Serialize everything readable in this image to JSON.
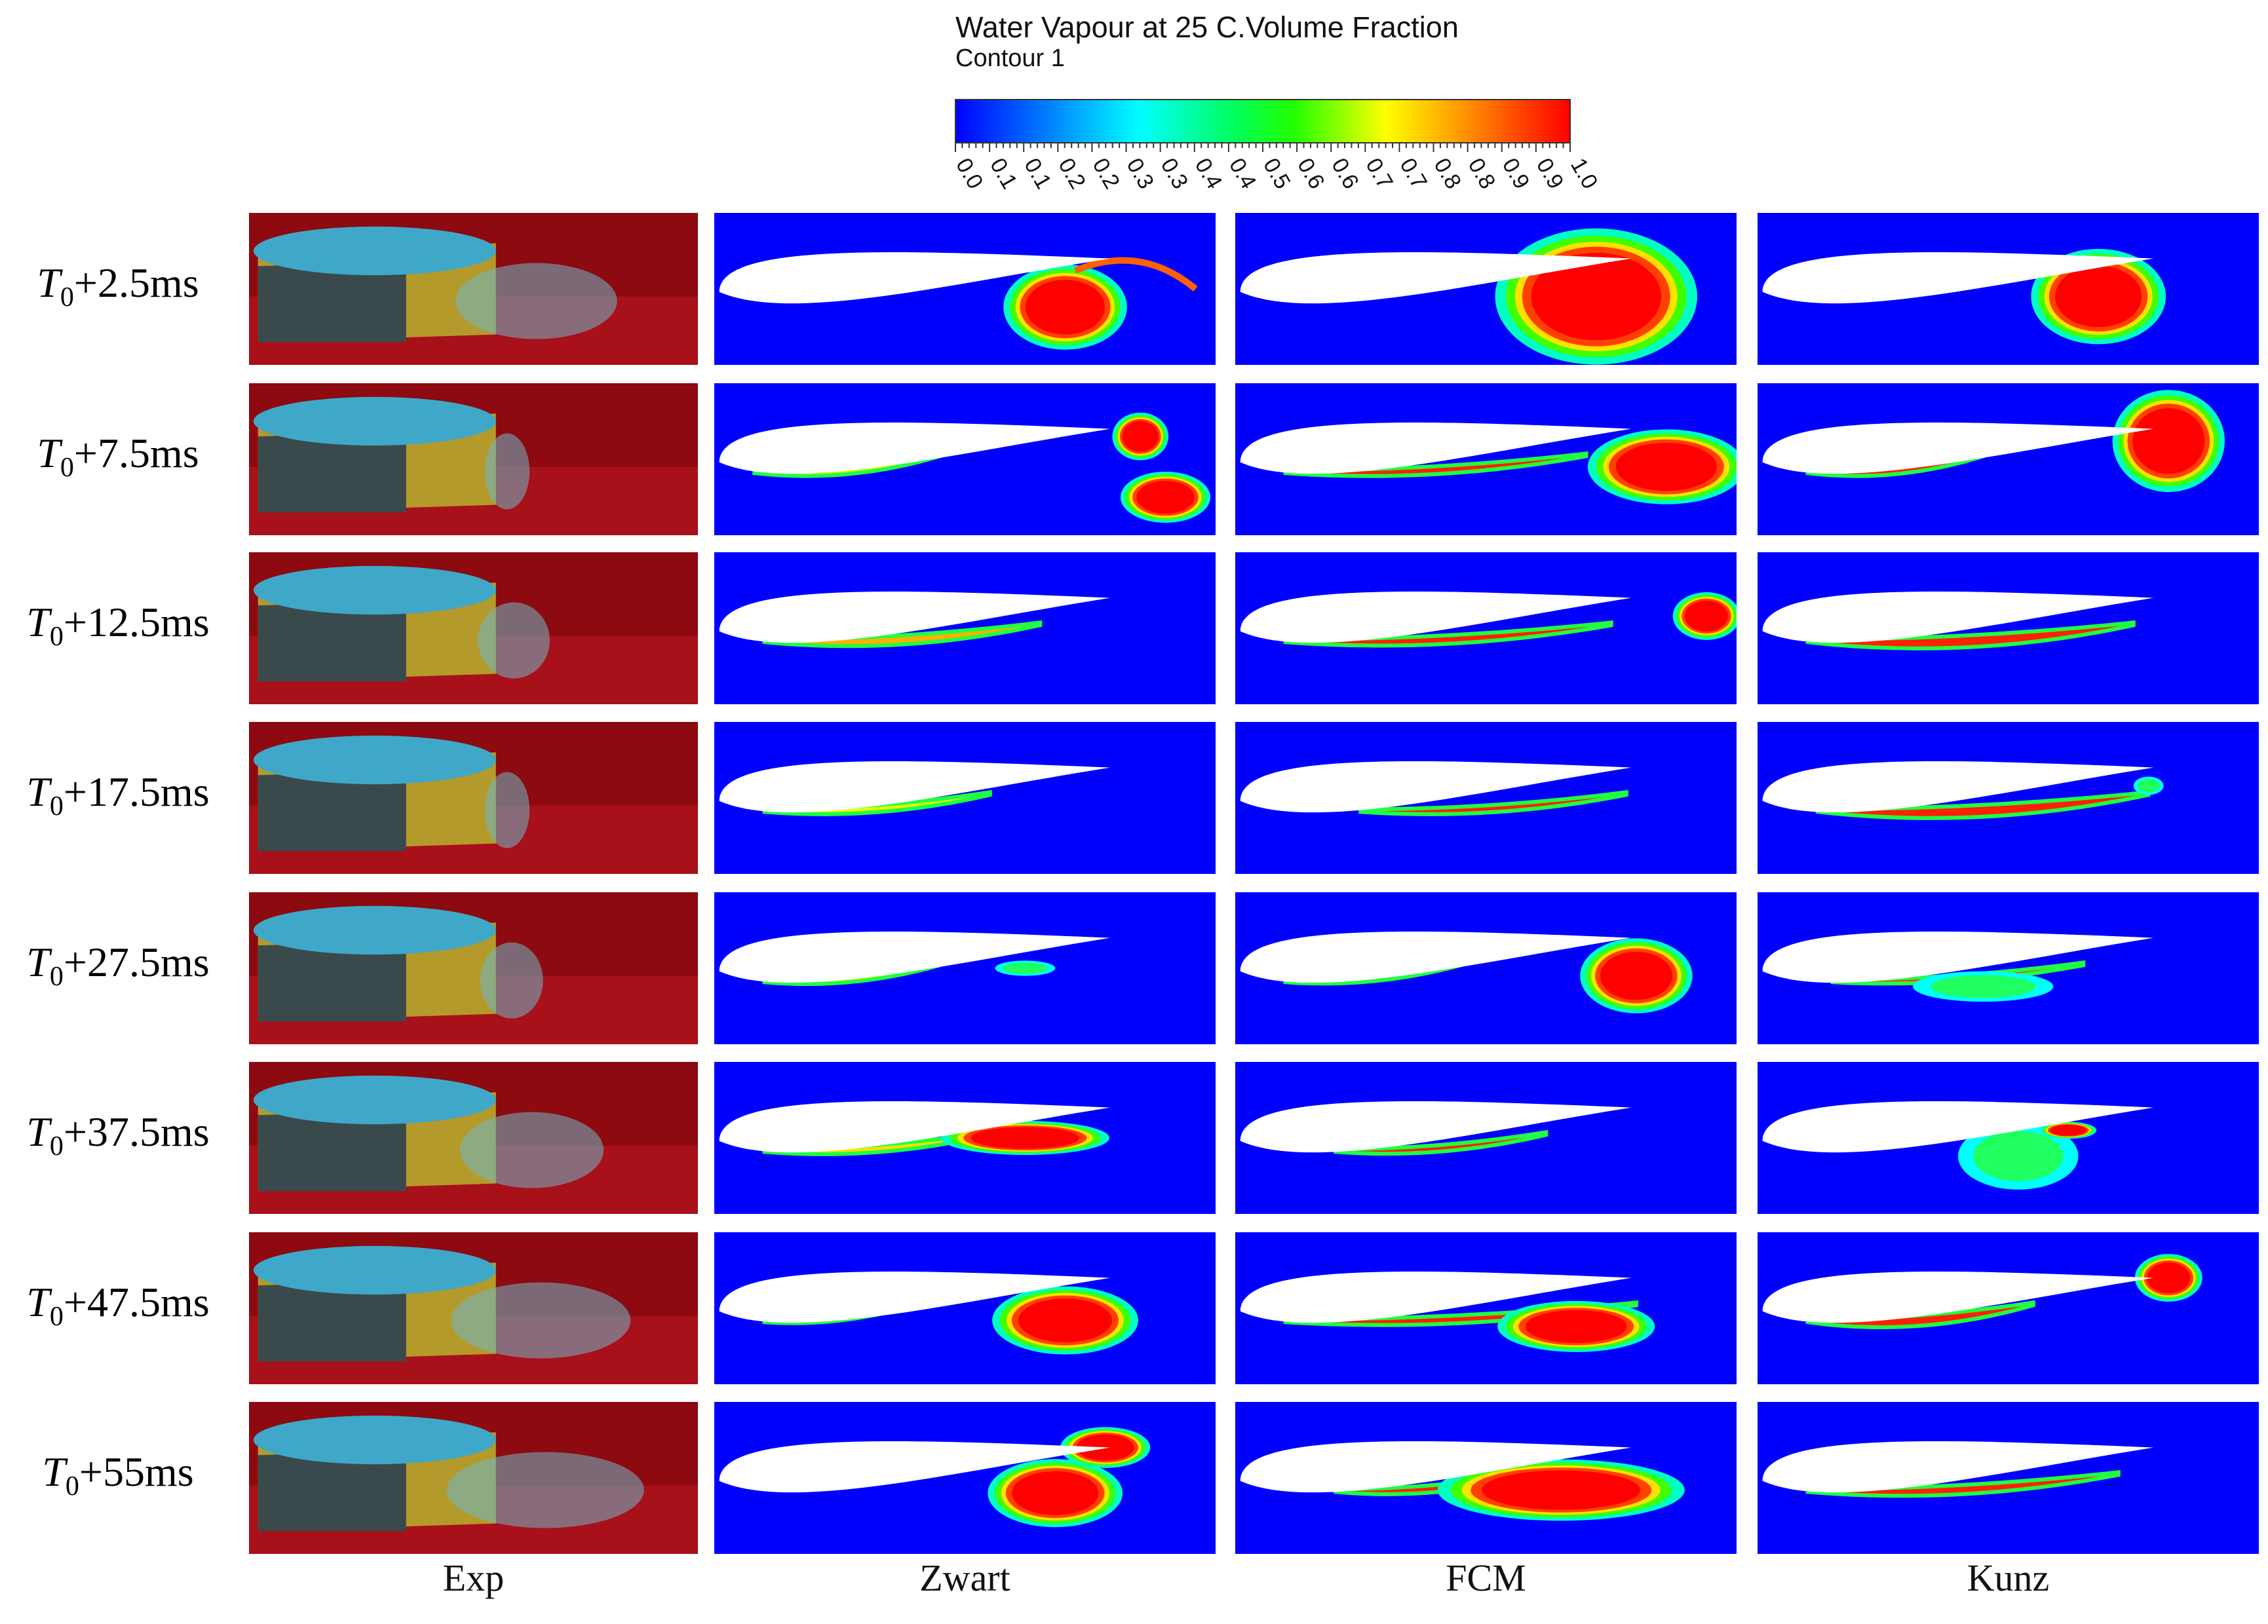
{
  "legend": {
    "title": "Water Vapour at 25 C.Volume Fraction",
    "subtitle": "Contour 1",
    "ticks": [
      "0.0",
      "0.1",
      "0.1",
      "0.2",
      "0.2",
      "0.3",
      "0.3",
      "0.4",
      "0.4",
      "0.5",
      "0.6",
      "0.6",
      "0.7",
      "0.7",
      "0.8",
      "0.8",
      "0.9",
      "0.9",
      "1.0"
    ],
    "colors": [
      "#0000ff",
      "#00a0ff",
      "#00ffff",
      "#00ff80",
      "#00ff00",
      "#a0ff00",
      "#ffff00",
      "#ff8000",
      "#ff0000"
    ]
  },
  "rows": [
    {
      "t": "T",
      "sub": "0",
      "suffix": "+2.5ms"
    },
    {
      "t": "T",
      "sub": "0",
      "suffix": "+7.5ms"
    },
    {
      "t": "T",
      "sub": "0",
      "suffix": "+12.5ms"
    },
    {
      "t": "T",
      "sub": "0",
      "suffix": "+17.5ms"
    },
    {
      "t": "T",
      "sub": "0",
      "suffix": "+27.5ms"
    },
    {
      "t": "T",
      "sub": "0",
      "suffix": "+37.5ms"
    },
    {
      "t": "T",
      "sub": "0",
      "suffix": "+47.5ms"
    },
    {
      "t": "T",
      "sub": "0",
      "suffix": "+55ms"
    }
  ],
  "columns": [
    "Exp",
    "Zwart",
    "FCM",
    "Kunz"
  ]
}
